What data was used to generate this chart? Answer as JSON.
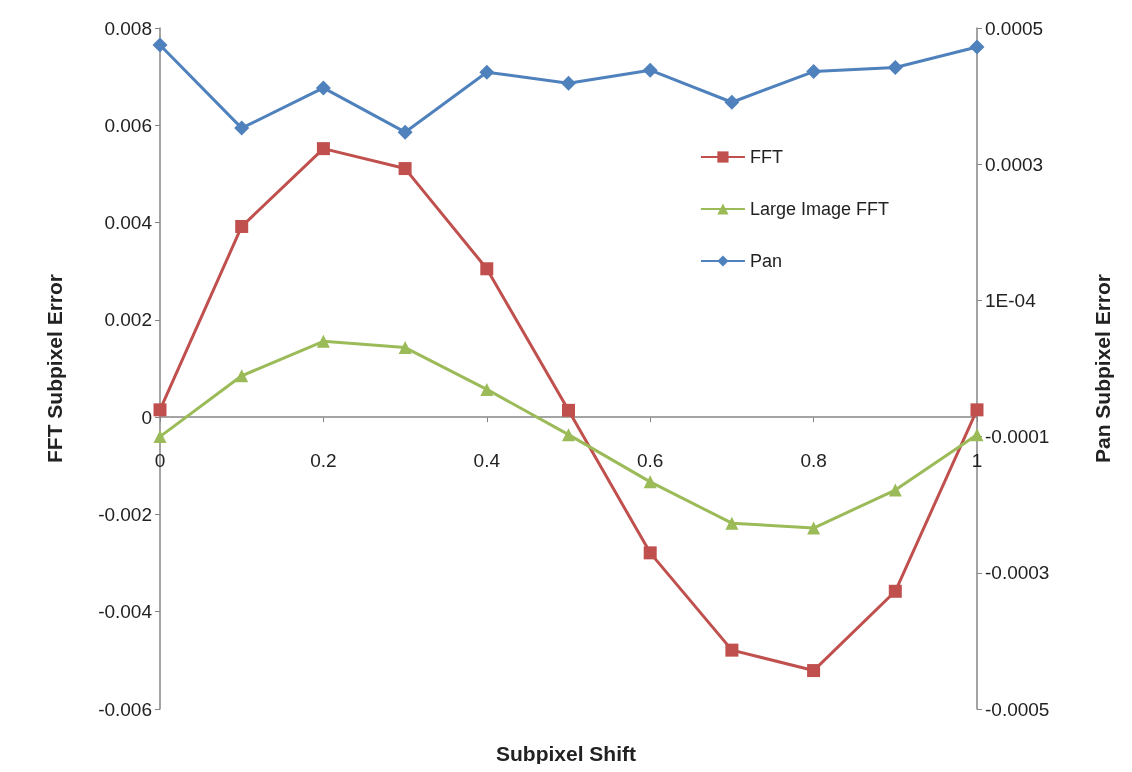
{
  "chart_data": {
    "type": "line",
    "xlabel": "Subpixel Shift",
    "ylabel": "FFT Subpixel Error",
    "y2label": "Pan Subpixel Error",
    "x": [
      0,
      0.1,
      0.2,
      0.3,
      0.4,
      0.5,
      0.6,
      0.7,
      0.8,
      0.9,
      1
    ],
    "series": [
      {
        "name": "FFT",
        "color": "#c0504d",
        "marker": "square",
        "values": [
          0.00015,
          0.00392,
          0.00552,
          0.00511,
          0.00305,
          0.00014,
          -0.00279,
          -0.00479,
          -0.00521,
          -0.00358,
          0.00015
        ]
      },
      {
        "name": "Large Image FFT",
        "color": "#9bbb59",
        "marker": "triangle",
        "values": [
          -0.0004,
          0.00085,
          0.00156,
          0.00143,
          0.00057,
          -0.00036,
          -0.00133,
          -0.00218,
          -0.00228,
          -0.0015,
          -0.00036
        ]
      },
      {
        "name": "Pan",
        "color": "#4f81bd",
        "marker": "diamond",
        "axis": "y2",
        "values": [
          0.000475,
          0.000353,
          0.000412,
          0.000347,
          0.000435,
          0.000419,
          0.000438,
          0.000391,
          0.000436,
          0.000442,
          0.000472
        ]
      }
    ],
    "xlim": [
      0,
      1
    ],
    "xticks": [
      0,
      0.2,
      0.4,
      0.6,
      0.8,
      1
    ],
    "ylim": [
      -0.006,
      0.008
    ],
    "yticks": [
      -0.006,
      -0.004,
      -0.002,
      0,
      0.002,
      0.004,
      0.006,
      0.008
    ],
    "y2lim": [
      -0.0005,
      0.0005
    ],
    "y2ticks": [
      -0.0005,
      -0.0003,
      -0.0001,
      {
        "value": 0.0001,
        "label": "1E-04"
      },
      0.0003,
      0.0005
    ],
    "grid": false,
    "legend": "top right"
  }
}
